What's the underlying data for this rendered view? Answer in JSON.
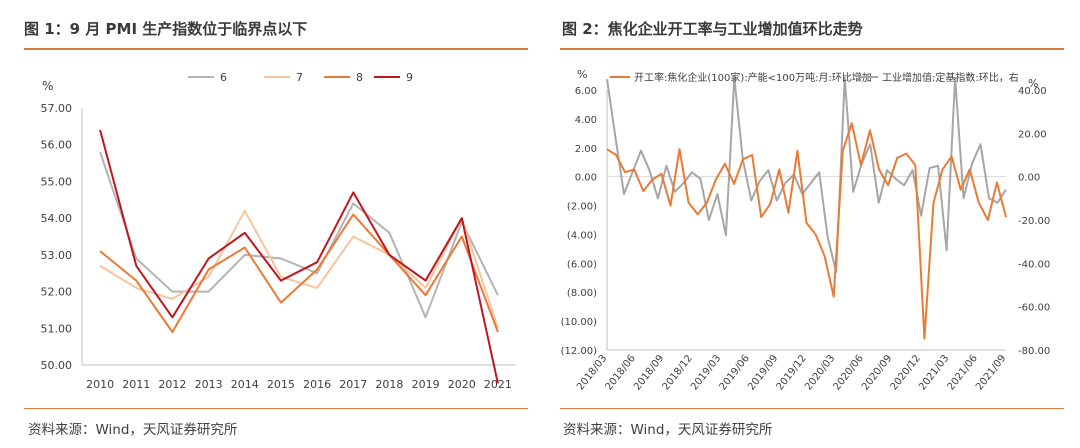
{
  "left_panel": {
    "title": "图 1：9 月 PMI 生产指数位于临界点以下",
    "source": "资料来源：Wind，天风证券研究所"
  },
  "right_panel": {
    "title": "图 2：焦化企业开工率与工业增加值环比走势",
    "source": "资料来源：Wind，天风证券研究所"
  },
  "colors": {
    "accent_rule": "#e07a3c",
    "s6": "#b4b4b4",
    "s7": "#f7c4a0",
    "s8": "#ea7a35",
    "s9": "#c0161d",
    "right_orange": "#ea7a35",
    "right_gray": "#a6a6a6"
  },
  "chart_data": [
    {
      "type": "line",
      "ylabel": "%",
      "ylim": [
        50.0,
        57.0
      ],
      "yticks": [
        "57.00",
        "56.00",
        "55.00",
        "54.00",
        "53.00",
        "52.00",
        "51.00",
        "50.00"
      ],
      "categories": [
        "2010",
        "2011",
        "2012",
        "2013",
        "2014",
        "2015",
        "2016",
        "2017",
        "2018",
        "2019",
        "2020",
        "2021"
      ],
      "grid": false,
      "legend": "top",
      "series": [
        {
          "name": "6",
          "color": "#b4b4b4",
          "values": [
            55.8,
            52.9,
            52.0,
            52.0,
            53.0,
            52.9,
            52.5,
            54.4,
            53.6,
            51.3,
            53.9,
            51.9
          ]
        },
        {
          "name": "7",
          "color": "#f7c4a0",
          "values": [
            52.7,
            52.1,
            51.8,
            52.4,
            54.2,
            52.4,
            52.1,
            53.5,
            53.0,
            52.1,
            54.0,
            51.0
          ]
        },
        {
          "name": "8",
          "color": "#ea7a35",
          "values": [
            53.1,
            52.3,
            50.9,
            52.6,
            53.2,
            51.7,
            52.6,
            54.1,
            53.0,
            51.9,
            53.5,
            50.9
          ]
        },
        {
          "name": "9",
          "color": "#c0161d",
          "values": [
            56.4,
            52.7,
            51.3,
            52.9,
            53.6,
            52.3,
            52.8,
            54.7,
            53.0,
            52.3,
            54.0,
            49.5
          ]
        }
      ]
    },
    {
      "type": "line",
      "y_left_label": "%",
      "y_right_label": "%",
      "y_left_ticks": [
        "6.00",
        "4.00",
        "2.00",
        "0.00",
        "(2.00)",
        "(4.00)",
        "(6.00)",
        "(8.00)",
        "(10.00)",
        "(12.00)"
      ],
      "y_left_range": [
        -12,
        6
      ],
      "y_right_ticks": [
        "40.00",
        "20.00",
        "0.00",
        "-20.00",
        "-40.00",
        "-60.00",
        "-80.00"
      ],
      "y_right_range": [
        -80,
        40
      ],
      "x_tick_labels": [
        "2018/03",
        "2018/06",
        "2018/09",
        "2018/12",
        "2019/03",
        "2019/06",
        "2019/09",
        "2019/12",
        "2020/03",
        "2020/06",
        "2020/09",
        "2020/12",
        "2021/03",
        "2021/06",
        "2021/09"
      ],
      "legend": "top",
      "series": [
        {
          "name": "开工率:焦化企业(100家):产能<100万吨:月:环比增加",
          "axis": "left",
          "color": "#ea7a35",
          "values": [
            1.9,
            1.5,
            0.3,
            0.5,
            -1.0,
            -0.2,
            0.2,
            -2.0,
            1.9,
            -1.8,
            -2.6,
            -1.8,
            -0.2,
            0.9,
            -0.5,
            1.2,
            1.5,
            -2.8,
            -1.9,
            0.5,
            -2.5,
            1.8,
            -3.2,
            -4.0,
            -5.5,
            -8.3,
            1.8,
            3.7,
            0.8,
            3.2,
            0.5,
            -0.6,
            1.3,
            1.6,
            0.8,
            -11.2,
            -1.8,
            0.5,
            1.4,
            -0.9,
            0.5,
            -1.8,
            -3.0,
            -0.4,
            -2.8
          ]
        },
        {
          "name": "工业增加值:定基指数:环比，右",
          "axis": "right",
          "color": "#a6a6a6",
          "values": [
            45.0,
            18.0,
            -8.0,
            2.0,
            12.0,
            3.0,
            -10.0,
            5.0,
            -7.0,
            -3.0,
            2.0,
            -1.0,
            -20.0,
            -8.0,
            -27.0,
            48.0,
            8.0,
            -11.0,
            -2.0,
            3.0,
            -11.0,
            -3.0,
            1.0,
            -8.0,
            -3.0,
            2.0,
            -28.0,
            -44.0,
            55.0,
            -7.0,
            6.0,
            15.0,
            -12.0,
            3.0,
            -1.0,
            -4.0,
            3.0,
            -18.0,
            4.0,
            5.0,
            -34.0,
            48.0,
            -10.0,
            6.0,
            15.0,
            -10.0,
            -12.0,
            -6.0
          ]
        }
      ]
    }
  ]
}
